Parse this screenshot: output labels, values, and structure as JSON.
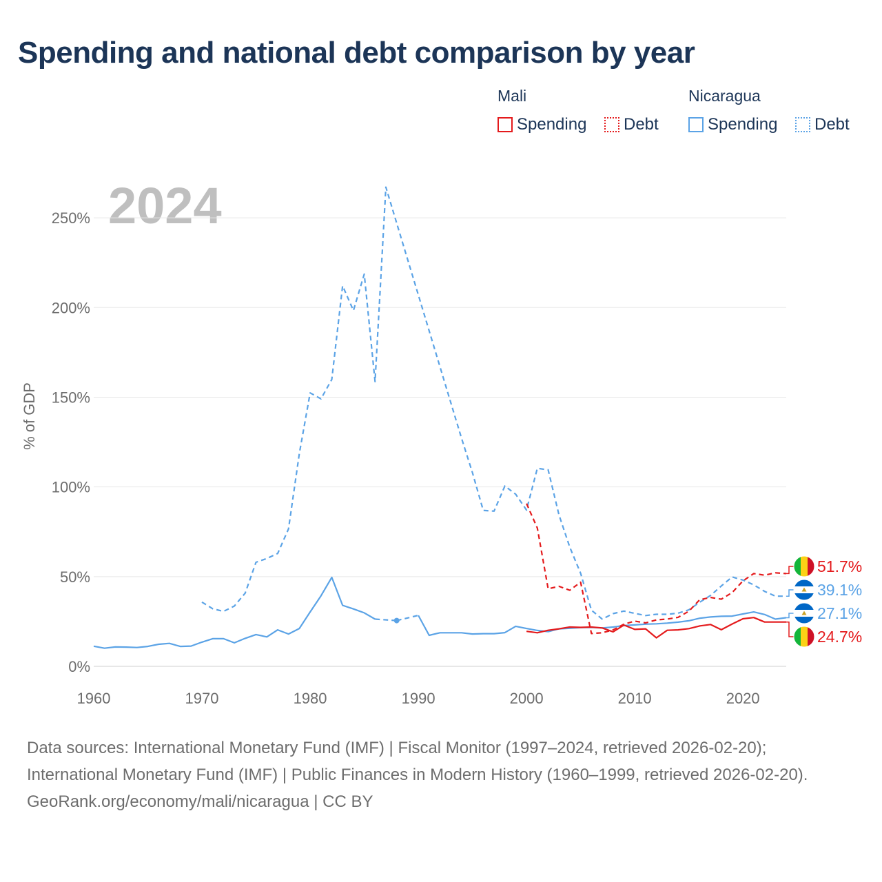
{
  "title": "Spending and national debt comparison by year",
  "legend": {
    "groups": [
      {
        "country": "Mali",
        "items": [
          {
            "label": "Spending",
            "style": "solid",
            "color": "#e41a1c"
          },
          {
            "label": "Debt",
            "style": "dotted",
            "color": "#e41a1c"
          }
        ]
      },
      {
        "country": "Nicaragua",
        "items": [
          {
            "label": "Spending",
            "style": "solid",
            "color": "#5ba3e6"
          },
          {
            "label": "Debt",
            "style": "dotted",
            "color": "#5ba3e6"
          }
        ]
      }
    ]
  },
  "footer": {
    "sources": "Data sources: International Monetary Fund (IMF) | Fiscal Monitor (1997–2024, retrieved 2026-02-20); International Monetary Fund (IMF) | Public Finances in Modern History (1960–1999, retrieved 2026-02-20).",
    "credit": "GeoRank.org/economy/mali/nicaragua | CC BY"
  },
  "chart_data": {
    "type": "line",
    "title": "Spending and national debt comparison by year",
    "year_watermark": "2024",
    "xlabel": "",
    "ylabel": "% of GDP",
    "xlim": [
      1960,
      2024
    ],
    "ylim": [
      0,
      270
    ],
    "x_ticks": [
      1960,
      1970,
      1980,
      1990,
      2000,
      2010,
      2020
    ],
    "x_tick_labels": [
      "1960",
      "1970",
      "1980",
      "1990",
      "2000",
      "2010",
      "2020"
    ],
    "y_ticks": [
      0,
      50,
      100,
      150,
      200,
      250
    ],
    "y_tick_labels": [
      "0%",
      "50%",
      "100%",
      "150%",
      "200%",
      "250%"
    ],
    "grid": true,
    "colors": {
      "mali": "#e41a1c",
      "nicaragua": "#5ba3e6"
    },
    "series": [
      {
        "name": "Nicaragua Spending",
        "country": "nicaragua",
        "style": "solid",
        "points": [
          [
            1960,
            11.2
          ],
          [
            1961,
            10.1
          ],
          [
            1962,
            10.8
          ],
          [
            1963,
            10.7
          ],
          [
            1964,
            10.5
          ],
          [
            1965,
            11.1
          ],
          [
            1966,
            12.3
          ],
          [
            1967,
            12.8
          ],
          [
            1968,
            11.1
          ],
          [
            1969,
            11.3
          ],
          [
            1970,
            13.5
          ],
          [
            1971,
            15.4
          ],
          [
            1972,
            15.4
          ],
          [
            1973,
            13.1
          ],
          [
            1974,
            15.6
          ],
          [
            1975,
            17.7
          ],
          [
            1976,
            16.4
          ],
          [
            1977,
            20.3
          ],
          [
            1978,
            18.0
          ],
          [
            1979,
            21.1
          ],
          [
            1980,
            30.3
          ],
          [
            1981,
            39.3
          ],
          [
            1982,
            49.6
          ],
          [
            1983,
            34.0
          ],
          [
            1984,
            32.0
          ],
          [
            1985,
            29.8
          ],
          [
            1986,
            26.3
          ],
          [
            1987,
            null
          ],
          [
            1988,
            25.5
          ],
          [
            1989,
            null
          ],
          [
            1990,
            28.4
          ],
          [
            1991,
            17.3
          ],
          [
            1992,
            18.7
          ],
          [
            1993,
            18.7
          ],
          [
            1994,
            18.7
          ],
          [
            1995,
            18.0
          ],
          [
            1996,
            18.2
          ],
          [
            1997,
            18.2
          ],
          [
            1998,
            18.8
          ],
          [
            1999,
            22.3
          ],
          [
            2000,
            21.1
          ],
          [
            2001,
            20.0
          ],
          [
            2002,
            19.3
          ],
          [
            2003,
            20.9
          ],
          [
            2004,
            21.2
          ],
          [
            2005,
            21.6
          ],
          [
            2006,
            21.7
          ],
          [
            2007,
            21.4
          ],
          [
            2008,
            21.9
          ],
          [
            2009,
            22.7
          ],
          [
            2010,
            23.1
          ],
          [
            2011,
            23.5
          ],
          [
            2012,
            23.7
          ],
          [
            2013,
            24.1
          ],
          [
            2014,
            24.6
          ],
          [
            2015,
            25.4
          ],
          [
            2016,
            26.8
          ],
          [
            2017,
            27.5
          ],
          [
            2018,
            27.9
          ],
          [
            2019,
            28.0
          ],
          [
            2020,
            29.2
          ],
          [
            2021,
            30.3
          ],
          [
            2022,
            28.9
          ],
          [
            2023,
            26.3
          ],
          [
            2024,
            27.1
          ]
        ]
      },
      {
        "name": "Nicaragua Debt",
        "country": "nicaragua",
        "style": "dashed",
        "points": [
          [
            1970,
            35.8
          ],
          [
            1971,
            32.1
          ],
          [
            1972,
            30.6
          ],
          [
            1973,
            33.6
          ],
          [
            1974,
            40.8
          ],
          [
            1975,
            58.0
          ],
          [
            1976,
            60.1
          ],
          [
            1977,
            62.9
          ],
          [
            1978,
            76.6
          ],
          [
            1979,
            118.6
          ],
          [
            1980,
            152.4
          ],
          [
            1981,
            149.1
          ],
          [
            1982,
            159.9
          ],
          [
            1983,
            212.1
          ],
          [
            1984,
            198.3
          ],
          [
            1985,
            218.6
          ],
          [
            1986,
            158.7
          ],
          [
            1987,
            267.1
          ],
          [
            1988,
            247.0
          ],
          [
            1989,
            227.0
          ],
          [
            1990,
            207.0
          ],
          [
            1991,
            187.0
          ],
          [
            1992,
            167.0
          ],
          [
            1993,
            147.0
          ],
          [
            1994,
            127.0
          ],
          [
            1995,
            108.0
          ],
          [
            1996,
            86.9
          ],
          [
            1997,
            86.5
          ],
          [
            1998,
            100.5
          ],
          [
            1999,
            95.9
          ],
          [
            2000,
            87.1
          ],
          [
            2001,
            110.4
          ],
          [
            2002,
            109.5
          ],
          [
            2003,
            84.4
          ],
          [
            2004,
            66.4
          ],
          [
            2005,
            51.9
          ],
          [
            2006,
            31.3
          ],
          [
            2007,
            26.3
          ],
          [
            2008,
            29.4
          ],
          [
            2009,
            30.8
          ],
          [
            2010,
            29.5
          ],
          [
            2011,
            28.3
          ],
          [
            2012,
            29.0
          ],
          [
            2013,
            29.0
          ],
          [
            2014,
            29.6
          ],
          [
            2015,
            31.5
          ],
          [
            2016,
            35.7
          ],
          [
            2017,
            39.5
          ],
          [
            2018,
            44.8
          ],
          [
            2019,
            49.8
          ],
          [
            2020,
            48.1
          ],
          [
            2021,
            45.4
          ],
          [
            2022,
            41.8
          ],
          [
            2023,
            39.1
          ],
          [
            2024,
            39.1
          ]
        ]
      },
      {
        "name": "Mali Spending",
        "country": "mali",
        "style": "solid",
        "points": [
          [
            2000,
            19.5
          ],
          [
            2001,
            18.7
          ],
          [
            2002,
            20.1
          ],
          [
            2003,
            20.9
          ],
          [
            2004,
            21.9
          ],
          [
            2005,
            21.7
          ],
          [
            2006,
            21.9
          ],
          [
            2007,
            21.4
          ],
          [
            2008,
            19.2
          ],
          [
            2009,
            23.0
          ],
          [
            2010,
            20.6
          ],
          [
            2011,
            20.9
          ],
          [
            2012,
            15.9
          ],
          [
            2013,
            20.1
          ],
          [
            2014,
            20.3
          ],
          [
            2015,
            21.0
          ],
          [
            2016,
            22.5
          ],
          [
            2017,
            23.3
          ],
          [
            2018,
            20.4
          ],
          [
            2019,
            23.6
          ],
          [
            2020,
            26.5
          ],
          [
            2021,
            27.2
          ],
          [
            2022,
            24.7
          ],
          [
            2023,
            24.7
          ],
          [
            2024,
            24.7
          ]
        ]
      },
      {
        "name": "Mali Debt",
        "country": "mali",
        "style": "dashed",
        "points": [
          [
            2000,
            90.7
          ],
          [
            2001,
            77.1
          ],
          [
            2002,
            43.2
          ],
          [
            2003,
            44.6
          ],
          [
            2004,
            42.4
          ],
          [
            2005,
            46.9
          ],
          [
            2006,
            18.3
          ],
          [
            2007,
            18.7
          ],
          [
            2008,
            20.3
          ],
          [
            2009,
            23.5
          ],
          [
            2010,
            25.2
          ],
          [
            2011,
            24.2
          ],
          [
            2012,
            25.9
          ],
          [
            2013,
            26.3
          ],
          [
            2014,
            27.3
          ],
          [
            2015,
            30.7
          ],
          [
            2016,
            37.1
          ],
          [
            2017,
            38.4
          ],
          [
            2018,
            37.4
          ],
          [
            2019,
            41.1
          ],
          [
            2020,
            47.6
          ],
          [
            2021,
            51.7
          ],
          [
            2022,
            50.8
          ],
          [
            2023,
            52.1
          ],
          [
            2024,
            51.7
          ]
        ]
      }
    ],
    "end_labels": [
      {
        "country": "mali",
        "series": "Mali Debt",
        "text": "51.7%"
      },
      {
        "country": "nicaragua",
        "series": "Nicaragua Debt",
        "text": "39.1%"
      },
      {
        "country": "nicaragua",
        "series": "Nicaragua Spending",
        "text": "27.1%"
      },
      {
        "country": "mali",
        "series": "Mali Spending",
        "text": "24.7%"
      }
    ]
  }
}
